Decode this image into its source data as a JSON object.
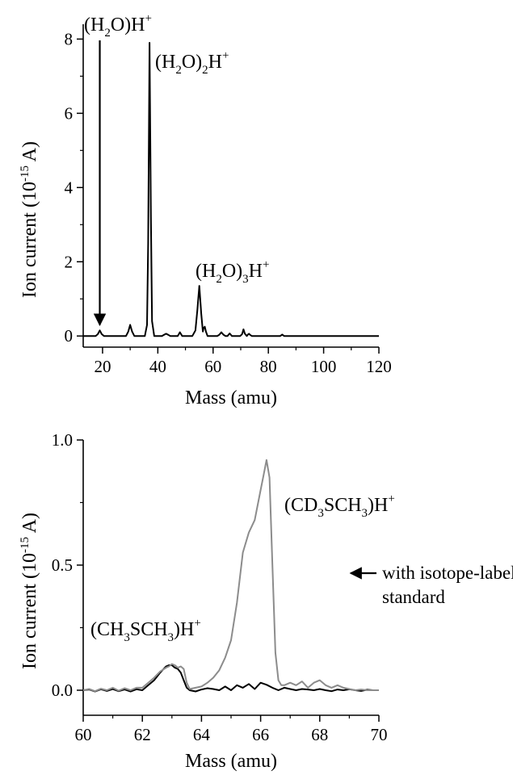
{
  "chart_data": [
    {
      "type": "line",
      "xlabel": "Mass (amu)",
      "ylabel": "Ion current (10",
      "ylabel_sup": "-15",
      "ylabel_tail": " A)",
      "xlim": [
        13,
        120
      ],
      "ylim": [
        -0.3,
        8.4
      ],
      "xticks": [
        20,
        40,
        60,
        80,
        100,
        120
      ],
      "yticks": [
        0,
        2,
        4,
        6,
        8
      ],
      "ytick_labels": [
        "0",
        "2",
        "4",
        "6",
        "8"
      ],
      "series": [
        {
          "color": "#000000",
          "x": [
            13,
            17.5,
            18.3,
            19,
            19.7,
            20.5,
            28.5,
            29.3,
            30,
            30.7,
            31.5,
            35.3,
            36.1,
            36.5,
            37,
            37.5,
            37.9,
            38.7,
            41.5,
            42.2,
            43,
            43.8,
            44.5,
            47.2,
            48,
            48.8,
            52.5,
            53.6,
            54.3,
            55,
            55.7,
            56.3,
            56.6,
            57,
            57.4,
            58,
            61.5,
            62.2,
            63,
            63.8,
            64.5,
            65.2,
            66,
            66.8,
            69.8,
            70.5,
            71,
            71.5,
            72.2,
            72.6,
            73,
            73.4,
            74,
            84.3,
            85,
            85.7,
            120
          ],
          "y": [
            0,
            0,
            0.05,
            0.15,
            0.05,
            0,
            0,
            0.12,
            0.3,
            0.12,
            0,
            0,
            0.3,
            2.5,
            7.9,
            3.2,
            0.4,
            0,
            0,
            0.03,
            0.06,
            0.03,
            0,
            0,
            0.1,
            0,
            0,
            0.15,
            0.7,
            1.35,
            0.6,
            0.12,
            0.22,
            0.25,
            0.12,
            0,
            0,
            0.03,
            0.1,
            0.03,
            0,
            0,
            0.07,
            0,
            0,
            0.05,
            0.18,
            0.06,
            0,
            0.04,
            0.06,
            0.03,
            0,
            0,
            0.04,
            0,
            0
          ]
        }
      ],
      "annotations": [
        {
          "base": "(H",
          "sub": "2",
          "mid": "O)H",
          "sup": "+"
        },
        {
          "base": "(H",
          "sub": "2",
          "mid": "O)",
          "sub2": "2",
          "tail": "H",
          "sup": "+"
        },
        {
          "base": "(H",
          "sub": "2",
          "mid": "O)",
          "sub2": "3",
          "tail": "H",
          "sup": "+"
        }
      ],
      "arrow_to": {
        "x": 19,
        "y": 0.3
      }
    },
    {
      "type": "line",
      "xlabel": "Mass (amu)",
      "ylabel": "Ion current (10",
      "ylabel_sup": "-15",
      "ylabel_tail": " A)",
      "xlim": [
        60,
        70
      ],
      "ylim": [
        -0.1,
        1.0
      ],
      "xticks": [
        60,
        62,
        64,
        66,
        68,
        70
      ],
      "yticks": [
        0,
        0.5,
        1.0
      ],
      "ytick_labels": [
        "0.0",
        "0.5",
        "1.0"
      ],
      "series": [
        {
          "color": "#000000",
          "x": [
            60,
            60.2,
            60.4,
            60.6,
            60.8,
            61,
            61.2,
            61.4,
            61.6,
            61.8,
            62,
            62.2,
            62.4,
            62.6,
            62.8,
            62.9,
            63,
            63.1,
            63.2,
            63.3,
            63.4,
            63.5,
            63.6,
            63.8,
            64,
            64.2,
            64.4,
            64.6,
            64.8,
            65,
            65.2,
            65.4,
            65.6,
            65.8,
            66,
            66.2,
            66.4,
            66.6,
            66.8,
            67,
            67.2,
            67.4,
            67.6,
            67.8,
            68,
            68.2,
            68.4,
            68.6,
            68.8,
            69,
            69.2,
            69.4,
            69.6,
            69.8,
            70
          ],
          "y": [
            0,
            0.003,
            -0.005,
            0.004,
            -0.003,
            0.005,
            -0.004,
            0.003,
            -0.005,
            0.004,
            0,
            0.02,
            0.04,
            0.07,
            0.095,
            0.1,
            0.1,
            0.09,
            0.085,
            0.07,
            0.04,
            0.01,
            0,
            -0.005,
            0.003,
            0.008,
            0.005,
            0,
            0.015,
            0,
            0.02,
            0.01,
            0.025,
            0.005,
            0.03,
            0.022,
            0.01,
            0,
            0.01,
            0.005,
            0,
            0.005,
            0.003,
            0,
            0.005,
            0,
            -0.004,
            0.003,
            0,
            0.004,
            0,
            -0.003,
            0.002,
            0,
            0
          ]
        },
        {
          "color": "#8c8c8c",
          "x": [
            60,
            60.2,
            60.4,
            60.6,
            60.8,
            61,
            61.2,
            61.4,
            61.6,
            61.8,
            62,
            62.2,
            62.4,
            62.6,
            62.8,
            62.9,
            63,
            63.1,
            63.2,
            63.3,
            63.4,
            63.5,
            63.6,
            63.8,
            64,
            64.2,
            64.4,
            64.6,
            64.8,
            65,
            65.2,
            65.4,
            65.6,
            65.8,
            66,
            66.1,
            66.2,
            66.3,
            66.4,
            66.5,
            66.6,
            66.7,
            66.8,
            67,
            67.2,
            67.4,
            67.6,
            67.8,
            68,
            68.2,
            68.4,
            68.6,
            68.8,
            69,
            69.2,
            69.4,
            69.6,
            69.8,
            70
          ],
          "y": [
            0,
            0.005,
            -0.004,
            0.006,
            0,
            0.01,
            -0.002,
            0.008,
            0,
            0.01,
            0.01,
            0.03,
            0.05,
            0.075,
            0.09,
            0.095,
            0.105,
            0.1,
            0.09,
            0.095,
            0.085,
            0.03,
            0.005,
            0.01,
            0.015,
            0.03,
            0.05,
            0.08,
            0.13,
            0.2,
            0.35,
            0.55,
            0.63,
            0.68,
            0.8,
            0.86,
            0.92,
            0.85,
            0.5,
            0.15,
            0.04,
            0.02,
            0.02,
            0.03,
            0.02,
            0.035,
            0.01,
            0.03,
            0.04,
            0.02,
            0.01,
            0.02,
            0.01,
            0.005,
            0,
            0.003,
            0,
            0,
            0
          ]
        }
      ],
      "annotations": [
        {
          "base": "(CH",
          "sub": "3",
          "mid": "SCH",
          "sub2": "3",
          "tail": ")H",
          "sup": "+"
        },
        {
          "base": "(CD",
          "sub": "3",
          "mid": "SCH",
          "sub2": "3",
          "tail": ")H",
          "sup": "+"
        },
        {
          "line1": "with isotope-labeled",
          "line2": "standard"
        }
      ]
    }
  ]
}
